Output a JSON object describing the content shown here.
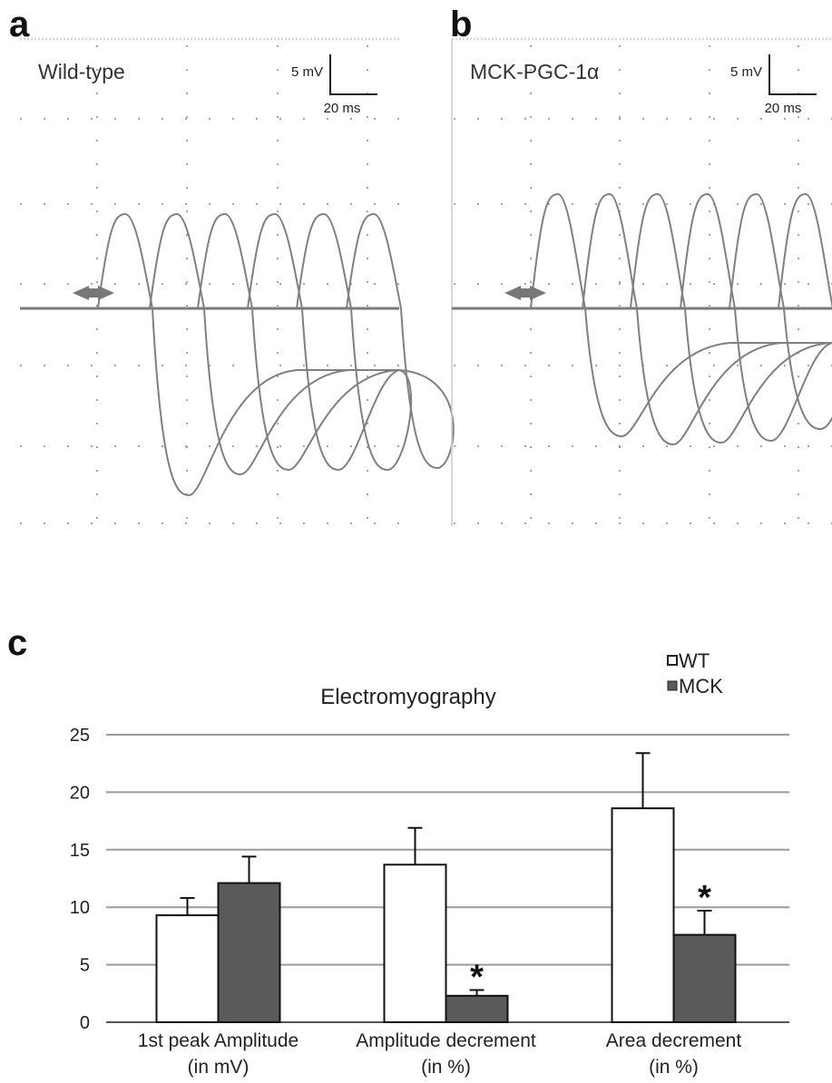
{
  "panel_a": {
    "letter": "a",
    "label": "Wild-type",
    "scale_v": "5 mV",
    "scale_t": "20 ms"
  },
  "panel_b": {
    "letter": "b",
    "label": "MCK-PGC-1α",
    "scale_v": "5 mV",
    "scale_t": "20 ms"
  },
  "panel_c": {
    "letter": "c"
  },
  "chart_data": {
    "type": "bar",
    "title": "Electromyography",
    "categories": [
      [
        "1st peak Amplitude",
        "(in mV)"
      ],
      [
        "Amplitude decrement",
        "(in %)"
      ],
      [
        "Area decrement",
        "(in %)"
      ]
    ],
    "series": [
      {
        "name": "WT",
        "values": [
          9.3,
          13.7,
          18.6
        ],
        "errors": [
          1.5,
          3.2,
          4.8
        ],
        "color": "#ffffff"
      },
      {
        "name": "MCK",
        "values": [
          12.1,
          2.3,
          7.6
        ],
        "errors": [
          2.3,
          0.5,
          2.1
        ],
        "color": "#5a5a5a"
      }
    ],
    "significance": [
      "",
      "*",
      "*"
    ],
    "ylim": [
      0,
      25
    ],
    "yticks": [
      0,
      5,
      10,
      15,
      20,
      25
    ],
    "grid": true,
    "legend": "top-right"
  }
}
